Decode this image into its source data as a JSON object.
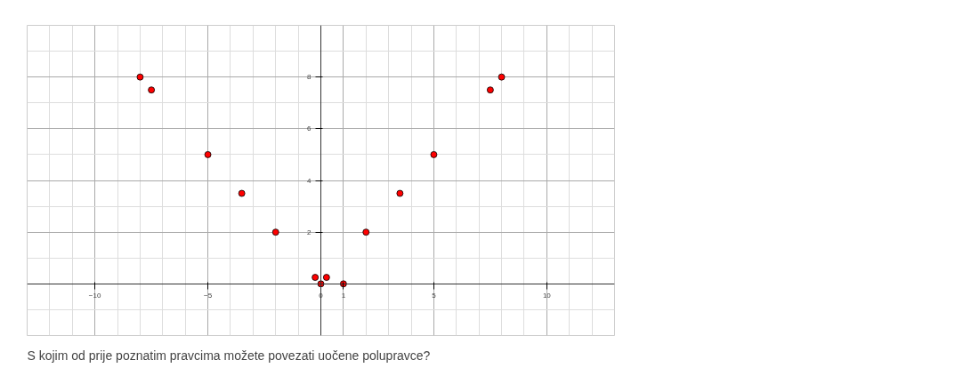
{
  "chart_data": {
    "type": "scatter",
    "x": [
      -8,
      -7.5,
      -5,
      -3.5,
      -2,
      -0.25,
      0,
      0.25,
      1,
      2,
      3.5,
      5,
      7.5,
      8
    ],
    "values": [
      8,
      7.5,
      5,
      3.5,
      2,
      0.25,
      0,
      0.25,
      0,
      2,
      3.5,
      5,
      7.5,
      8
    ],
    "color": "#ff0000",
    "marker": "circle",
    "xlim": [
      -13,
      13
    ],
    "ylim": [
      -2,
      10
    ],
    "xticks": [
      -10,
      -5,
      0,
      1,
      5,
      10
    ],
    "yticks": [
      2,
      4,
      6,
      8
    ],
    "grid": true,
    "annotations": [
      "S kojim od prije poznatim pravcima možete povezati uočene polupravce?"
    ]
  }
}
